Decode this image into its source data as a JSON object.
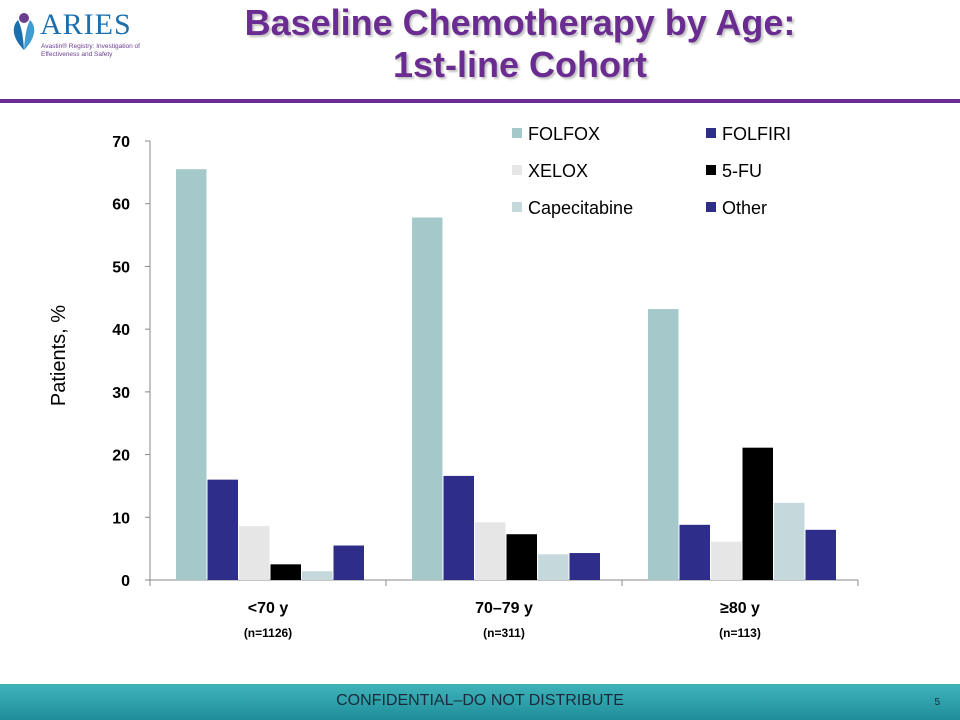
{
  "logo": {
    "name": "ARIES",
    "tagline": "Avastin® Registry: Investigation of Effectiveness and Safety",
    "colors": {
      "brand": "#1b6fae",
      "accent": "#6a3d8f"
    }
  },
  "slide": {
    "title_line1": "Baseline Chemotherapy by Age:",
    "title_line2": "1st-line Cohort",
    "footer": "CONFIDENTIAL–DO NOT DISTRIBUTE",
    "page_number": "5"
  },
  "chart_data": {
    "type": "bar",
    "ylabel": "Patients, %",
    "ylim": [
      0,
      70
    ],
    "yticks": [
      0,
      10,
      20,
      30,
      40,
      50,
      60,
      70
    ],
    "categories": [
      "<70 y",
      "70–79 y",
      "≥80 y"
    ],
    "category_notes": [
      "(n=1126)",
      "(n=311)",
      "(n=113)"
    ],
    "legend_position": "top-right",
    "grid": false,
    "series": [
      {
        "name": "FOLFOX",
        "color": "#a5c9ca",
        "values": [
          65.5,
          57.8,
          43.2
        ]
      },
      {
        "name": "FOLFIRI",
        "color": "#2e2e8a",
        "values": [
          16.0,
          16.6,
          8.8
        ]
      },
      {
        "name": "XELOX",
        "color": "#e6e6e6",
        "values": [
          8.6,
          9.2,
          6.1
        ]
      },
      {
        "name": "5-FU",
        "color": "#000000",
        "values": [
          2.5,
          7.3,
          21.1
        ]
      },
      {
        "name": "Capecitabine",
        "color": "#c5d8dc",
        "values": [
          1.4,
          4.1,
          12.3
        ]
      },
      {
        "name": "Other",
        "color": "#2e2e8a",
        "values": [
          5.5,
          4.3,
          8.0
        ]
      }
    ]
  }
}
